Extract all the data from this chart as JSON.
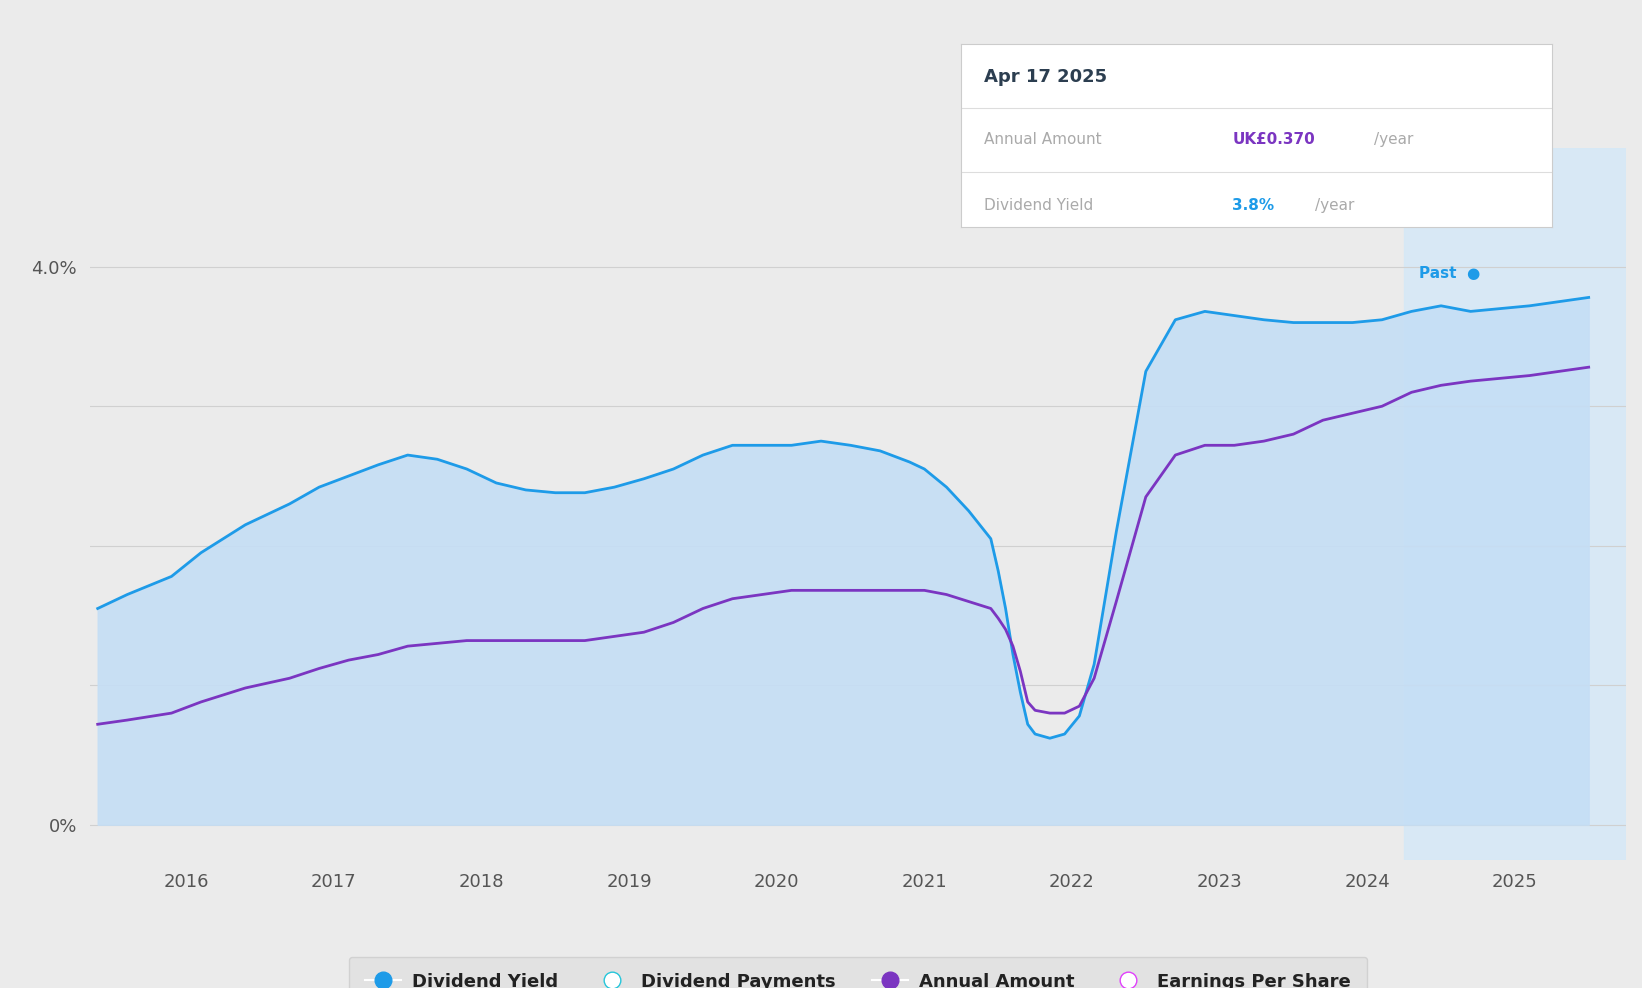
{
  "background_color": "#ebebeb",
  "plot_bg": "#ebebeb",
  "dividend_yield_color": "#1e9be8",
  "dividend_yield_fill": "#c5def5",
  "annual_amount_color": "#7b35c1",
  "future_shade_color": "#d5e8f7",
  "grid_color": "#d0d0d0",
  "xmin": 2015.35,
  "xmax": 2025.75,
  "ymin": -0.25,
  "ymax": 4.85,
  "future_shade_start": 2024.25,
  "x_ticks": [
    2016,
    2017,
    2018,
    2019,
    2020,
    2021,
    2022,
    2023,
    2024,
    2025
  ],
  "y_ticks": [
    0,
    1,
    2,
    3,
    4
  ],
  "tooltip_date": "Apr 17 2025",
  "tooltip_annual_label": "Annual Amount",
  "tooltip_annual_value": "UK£0.370",
  "tooltip_yield_label": "Dividend Yield",
  "tooltip_yield_value": "3.8%",
  "past_label": "Past",
  "legend_items": [
    {
      "label": "Dividend Yield",
      "color": "#1e9be8",
      "filled": true
    },
    {
      "label": "Dividend Payments",
      "color": "#26c6da",
      "filled": false
    },
    {
      "label": "Annual Amount",
      "color": "#7b35c1",
      "filled": true
    },
    {
      "label": "Earnings Per Share",
      "color": "#e040fb",
      "filled": false
    }
  ],
  "dividend_yield_x": [
    2015.4,
    2015.6,
    2015.9,
    2016.1,
    2016.4,
    2016.7,
    2016.9,
    2017.1,
    2017.3,
    2017.5,
    2017.7,
    2017.9,
    2018.1,
    2018.3,
    2018.5,
    2018.7,
    2018.9,
    2019.1,
    2019.3,
    2019.5,
    2019.7,
    2019.9,
    2020.1,
    2020.3,
    2020.5,
    2020.7,
    2020.9,
    2021.0,
    2021.15,
    2021.3,
    2021.45,
    2021.5,
    2021.55,
    2021.6,
    2021.65,
    2021.7,
    2021.75,
    2021.85,
    2021.95,
    2022.05,
    2022.15,
    2022.3,
    2022.5,
    2022.7,
    2022.9,
    2023.1,
    2023.3,
    2023.5,
    2023.7,
    2023.9,
    2024.1,
    2024.2,
    2024.3,
    2024.5,
    2024.7,
    2024.9,
    2025.1,
    2025.3,
    2025.5
  ],
  "dividend_yield_y": [
    1.55,
    1.65,
    1.78,
    1.95,
    2.15,
    2.3,
    2.42,
    2.5,
    2.58,
    2.65,
    2.62,
    2.55,
    2.45,
    2.4,
    2.38,
    2.38,
    2.42,
    2.48,
    2.55,
    2.65,
    2.72,
    2.72,
    2.72,
    2.75,
    2.72,
    2.68,
    2.6,
    2.55,
    2.42,
    2.25,
    2.05,
    1.82,
    1.55,
    1.22,
    0.95,
    0.72,
    0.65,
    0.62,
    0.65,
    0.78,
    1.15,
    2.1,
    3.25,
    3.62,
    3.68,
    3.65,
    3.62,
    3.6,
    3.6,
    3.6,
    3.62,
    3.65,
    3.68,
    3.72,
    3.68,
    3.7,
    3.72,
    3.75,
    3.78
  ],
  "annual_amount_x": [
    2015.4,
    2015.6,
    2015.9,
    2016.1,
    2016.4,
    2016.7,
    2016.9,
    2017.1,
    2017.3,
    2017.5,
    2017.7,
    2017.9,
    2018.1,
    2018.3,
    2018.5,
    2018.7,
    2018.9,
    2019.1,
    2019.3,
    2019.5,
    2019.7,
    2019.9,
    2020.1,
    2020.3,
    2020.5,
    2020.7,
    2020.9,
    2021.0,
    2021.15,
    2021.3,
    2021.45,
    2021.5,
    2021.55,
    2021.6,
    2021.65,
    2021.7,
    2021.75,
    2021.85,
    2021.95,
    2022.05,
    2022.15,
    2022.3,
    2022.5,
    2022.7,
    2022.9,
    2023.1,
    2023.3,
    2023.5,
    2023.7,
    2023.9,
    2024.1,
    2024.2,
    2024.3,
    2024.5,
    2024.7,
    2024.9,
    2025.1,
    2025.3,
    2025.5
  ],
  "annual_amount_y": [
    0.72,
    0.75,
    0.8,
    0.88,
    0.98,
    1.05,
    1.12,
    1.18,
    1.22,
    1.28,
    1.3,
    1.32,
    1.32,
    1.32,
    1.32,
    1.32,
    1.35,
    1.38,
    1.45,
    1.55,
    1.62,
    1.65,
    1.68,
    1.68,
    1.68,
    1.68,
    1.68,
    1.68,
    1.65,
    1.6,
    1.55,
    1.48,
    1.4,
    1.28,
    1.1,
    0.88,
    0.82,
    0.8,
    0.8,
    0.85,
    1.05,
    1.6,
    2.35,
    2.65,
    2.72,
    2.72,
    2.75,
    2.8,
    2.9,
    2.95,
    3.0,
    3.05,
    3.1,
    3.15,
    3.18,
    3.2,
    3.22,
    3.25,
    3.28
  ]
}
